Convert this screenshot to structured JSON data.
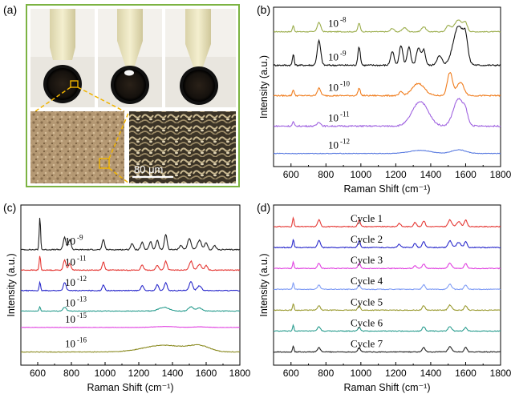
{
  "panel_labels": [
    "(a)",
    "(b)",
    "(c)",
    "(d)"
  ],
  "photo": {
    "scale_bar_label": "80 μm",
    "frame_color": "#7cb342"
  },
  "chart_data": [
    {
      "id": "b",
      "type": "line",
      "xlabel": "Raman Shift (cm⁻¹)",
      "ylabel": "Intensity (a.u.)",
      "xlim": [
        500,
        1800
      ],
      "xticks": [
        600,
        800,
        1000,
        1200,
        1400,
        1600,
        1800
      ],
      "series": [
        {
          "label_base": "10",
          "label_exp": "-8",
          "color": "#9aac4a",
          "offset": 4.0,
          "amp": 0.55,
          "peaks": [
            [
              613,
              0.35,
              5
            ],
            [
              760,
              0.55,
              10
            ],
            [
              990,
              0.5,
              7
            ],
            [
              1180,
              0.2,
              10
            ],
            [
              1250,
              0.25,
              12
            ],
            [
              1360,
              0.3,
              12
            ],
            [
              1500,
              0.35,
              12
            ],
            [
              1560,
              0.7,
              25
            ],
            [
              1600,
              0.4,
              10
            ]
          ]
        },
        {
          "label_base": "10",
          "label_exp": "-9",
          "color": "#111111",
          "offset": 2.9,
          "amp": 1.0,
          "peaks": [
            [
              613,
              0.35,
              5
            ],
            [
              760,
              0.8,
              10
            ],
            [
              990,
              0.6,
              7
            ],
            [
              1180,
              0.45,
              10
            ],
            [
              1230,
              0.65,
              10
            ],
            [
              1275,
              0.6,
              10
            ],
            [
              1330,
              0.55,
              12
            ],
            [
              1360,
              0.5,
              10
            ],
            [
              1450,
              0.3,
              15
            ],
            [
              1560,
              1.3,
              30
            ],
            [
              1600,
              0.6,
              12
            ]
          ]
        },
        {
          "label_base": "10",
          "label_exp": "-10",
          "color": "#f07c1c",
          "offset": 1.9,
          "amp": 0.8,
          "peaks": [
            [
              613,
              0.25,
              5
            ],
            [
              760,
              0.3,
              10
            ],
            [
              990,
              0.3,
              7
            ],
            [
              1230,
              0.15,
              10
            ],
            [
              1330,
              0.5,
              35
            ],
            [
              1510,
              0.95,
              15
            ],
            [
              1570,
              0.55,
              20
            ]
          ]
        },
        {
          "label_base": "10",
          "label_exp": "-11",
          "color": "#a064e0",
          "offset": 0.9,
          "amp": 0.9,
          "peaks": [
            [
              613,
              0.15,
              5
            ],
            [
              760,
              0.15,
              10
            ],
            [
              1340,
              0.9,
              45
            ],
            [
              1560,
              1.0,
              30
            ],
            [
              1600,
              0.3,
              12
            ]
          ]
        },
        {
          "label_base": "10",
          "label_exp": "-12",
          "color": "#5a7be0",
          "offset": 0.0,
          "amp": 0.35,
          "peaks": [
            [
              1340,
              0.3,
              60
            ],
            [
              1560,
              0.35,
              40
            ]
          ]
        }
      ]
    },
    {
      "id": "c",
      "type": "line",
      "xlabel": "Raman Shift (cm⁻¹)",
      "ylabel": "Intensity (a.u.)",
      "xlim": [
        500,
        1800
      ],
      "xticks": [
        600,
        800,
        1000,
        1200,
        1400,
        1600,
        1800
      ],
      "series": [
        {
          "label_base": "10",
          "label_exp": "-9",
          "color": "#222222",
          "offset": 5.0,
          "amp": 1.0,
          "peaks": [
            [
              613,
              1.6,
              4
            ],
            [
              760,
              0.6,
              8
            ],
            [
              790,
              0.5,
              8
            ],
            [
              990,
              0.5,
              7
            ],
            [
              1160,
              0.3,
              8
            ],
            [
              1220,
              0.35,
              8
            ],
            [
              1270,
              0.4,
              8
            ],
            [
              1310,
              0.45,
              8
            ],
            [
              1360,
              0.75,
              8
            ],
            [
              1450,
              0.2,
              10
            ],
            [
              1500,
              0.55,
              10
            ],
            [
              1560,
              0.45,
              12
            ],
            [
              1600,
              0.35,
              8
            ],
            [
              1650,
              0.2,
              8
            ]
          ]
        },
        {
          "label_base": "10",
          "label_exp": "-11",
          "color": "#e53935",
          "offset": 4.0,
          "amp": 0.8,
          "peaks": [
            [
              613,
              0.9,
              4
            ],
            [
              760,
              0.6,
              8
            ],
            [
              790,
              0.4,
              8
            ],
            [
              990,
              0.5,
              7
            ],
            [
              1220,
              0.3,
              8
            ],
            [
              1310,
              0.3,
              8
            ],
            [
              1360,
              0.55,
              8
            ],
            [
              1510,
              0.55,
              10
            ],
            [
              1560,
              0.35,
              12
            ],
            [
              1600,
              0.3,
              8
            ]
          ]
        },
        {
          "label_base": "10",
          "label_exp": "-12",
          "color": "#2b2bcc",
          "offset": 3.0,
          "amp": 0.8,
          "peaks": [
            [
              613,
              0.5,
              4
            ],
            [
              760,
              0.5,
              8
            ],
            [
              990,
              0.35,
              7
            ],
            [
              1220,
              0.3,
              8
            ],
            [
              1310,
              0.35,
              8
            ],
            [
              1360,
              0.5,
              8
            ],
            [
              1510,
              0.55,
              10
            ],
            [
              1560,
              0.3,
              12
            ]
          ]
        },
        {
          "label_base": "10",
          "label_exp": "-13",
          "color": "#2a9d8f",
          "offset": 2.0,
          "amp": 0.6,
          "peaks": [
            [
              613,
              0.35,
              4
            ],
            [
              760,
              0.3,
              10
            ],
            [
              1350,
              0.3,
              30
            ],
            [
              1510,
              0.35,
              15
            ],
            [
              1560,
              0.25,
              15
            ]
          ]
        },
        {
          "label_base": "10",
          "label_exp": "-15",
          "color": "#e040e0",
          "offset": 1.2,
          "amp": 0.3,
          "peaks": [
            [
              1350,
              0.15,
              60
            ],
            [
              1560,
              0.1,
              40
            ]
          ]
        },
        {
          "label_base": "10",
          "label_exp": "-16",
          "color": "#8a8a20",
          "offset": 0.0,
          "amp": 0.6,
          "peaks": [
            [
              1350,
              0.55,
              120
            ],
            [
              1560,
              0.45,
              60
            ]
          ]
        }
      ]
    },
    {
      "id": "d",
      "type": "line",
      "xlabel": "Raman Shift (cm⁻¹)",
      "ylabel": "Intensity (a.u.)",
      "xlim": [
        500,
        1800
      ],
      "xticks": [
        600,
        800,
        1000,
        1200,
        1400,
        1600,
        1800
      ],
      "series": [
        {
          "label_base": "Cycle 1",
          "label_exp": "",
          "color": "#e53935",
          "offset": 6.0,
          "amp": 0.8,
          "peaks": [
            [
              613,
              0.55,
              4
            ],
            [
              760,
              0.4,
              8
            ],
            [
              990,
              0.4,
              7
            ],
            [
              1220,
              0.2,
              8
            ],
            [
              1310,
              0.25,
              8
            ],
            [
              1360,
              0.35,
              8
            ],
            [
              1510,
              0.4,
              10
            ],
            [
              1560,
              0.3,
              12
            ],
            [
              1600,
              0.4,
              8
            ]
          ]
        },
        {
          "label_base": "Cycle 2",
          "label_exp": "",
          "color": "#2b2bcc",
          "offset": 5.0,
          "amp": 0.8,
          "peaks": [
            [
              613,
              0.5,
              4
            ],
            [
              760,
              0.45,
              8
            ],
            [
              990,
              0.4,
              7
            ],
            [
              1220,
              0.2,
              8
            ],
            [
              1310,
              0.25,
              8
            ],
            [
              1360,
              0.35,
              8
            ],
            [
              1510,
              0.4,
              10
            ],
            [
              1560,
              0.3,
              12
            ],
            [
              1600,
              0.35,
              8
            ]
          ]
        },
        {
          "label_base": "Cycle 3",
          "label_exp": "",
          "color": "#e040e0",
          "offset": 4.0,
          "amp": 0.7,
          "peaks": [
            [
              613,
              0.45,
              4
            ],
            [
              760,
              0.35,
              8
            ],
            [
              990,
              0.35,
              7
            ],
            [
              1310,
              0.2,
              8
            ],
            [
              1360,
              0.3,
              8
            ],
            [
              1510,
              0.35,
              10
            ],
            [
              1600,
              0.35,
              8
            ]
          ]
        },
        {
          "label_base": "Cycle 4",
          "label_exp": "",
          "color": "#7f9cf5",
          "offset": 3.0,
          "amp": 0.7,
          "peaks": [
            [
              613,
              0.45,
              4
            ],
            [
              760,
              0.3,
              8
            ],
            [
              990,
              0.3,
              7
            ],
            [
              1360,
              0.3,
              8
            ],
            [
              1510,
              0.35,
              10
            ],
            [
              1600,
              0.3,
              8
            ]
          ]
        },
        {
          "label_base": "Cycle 5",
          "label_exp": "",
          "color": "#9a9a30",
          "offset": 2.0,
          "amp": 0.7,
          "peaks": [
            [
              613,
              0.45,
              4
            ],
            [
              760,
              0.3,
              8
            ],
            [
              990,
              0.3,
              7
            ],
            [
              1360,
              0.3,
              8
            ],
            [
              1510,
              0.35,
              10
            ],
            [
              1600,
              0.3,
              8
            ]
          ]
        },
        {
          "label_base": "Cycle 6",
          "label_exp": "",
          "color": "#2a9d8f",
          "offset": 1.0,
          "amp": 0.7,
          "peaks": [
            [
              613,
              0.4,
              4
            ],
            [
              760,
              0.3,
              8
            ],
            [
              990,
              0.25,
              7
            ],
            [
              1360,
              0.3,
              8
            ],
            [
              1510,
              0.3,
              10
            ],
            [
              1600,
              0.25,
              8
            ]
          ]
        },
        {
          "label_base": "Cycle 7",
          "label_exp": "",
          "color": "#222222",
          "offset": 0.0,
          "amp": 0.7,
          "peaks": [
            [
              613,
              0.4,
              4
            ],
            [
              760,
              0.3,
              8
            ],
            [
              990,
              0.3,
              7
            ],
            [
              1360,
              0.3,
              8
            ],
            [
              1510,
              0.35,
              10
            ],
            [
              1600,
              0.3,
              8
            ]
          ]
        }
      ]
    }
  ]
}
